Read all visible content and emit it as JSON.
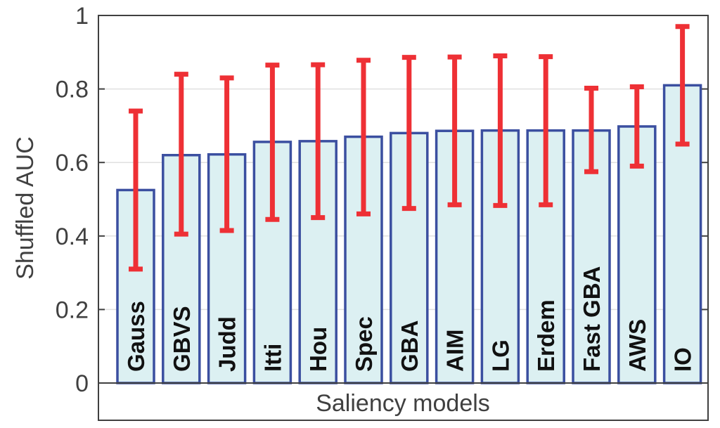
{
  "chart_data": {
    "type": "bar",
    "ylabel": "Shuffled AUC",
    "xlabel": "Saliency models",
    "ylim": [
      0,
      1
    ],
    "yticks": [
      0,
      0.2,
      0.4,
      0.6,
      0.8,
      1
    ],
    "ytick_labels": [
      "0",
      "0.2",
      "0.4",
      "0.6",
      "0.8",
      "1"
    ],
    "grid": true,
    "categories": [
      "Gauss",
      "GBVS",
      "Judd",
      "Itti",
      "Hou",
      "Spec",
      "GBA",
      "AIM",
      "LG",
      "Erdem",
      "Fast GBA",
      "AWS",
      "IO"
    ],
    "values": [
      0.525,
      0.62,
      0.622,
      0.656,
      0.658,
      0.67,
      0.68,
      0.686,
      0.687,
      0.687,
      0.687,
      0.698,
      0.81
    ],
    "error_low": [
      0.31,
      0.405,
      0.415,
      0.445,
      0.45,
      0.46,
      0.475,
      0.485,
      0.483,
      0.485,
      0.575,
      0.59,
      0.65
    ],
    "error_high": [
      0.74,
      0.84,
      0.83,
      0.865,
      0.866,
      0.878,
      0.886,
      0.887,
      0.89,
      0.888,
      0.802,
      0.806,
      0.97
    ],
    "colors": {
      "bar_fill": "#dcf0f2",
      "bar_stroke": "#3b4fa0",
      "error_bar": "#ee3035",
      "grid": "#e0e0e0",
      "axis": "#404040"
    }
  }
}
